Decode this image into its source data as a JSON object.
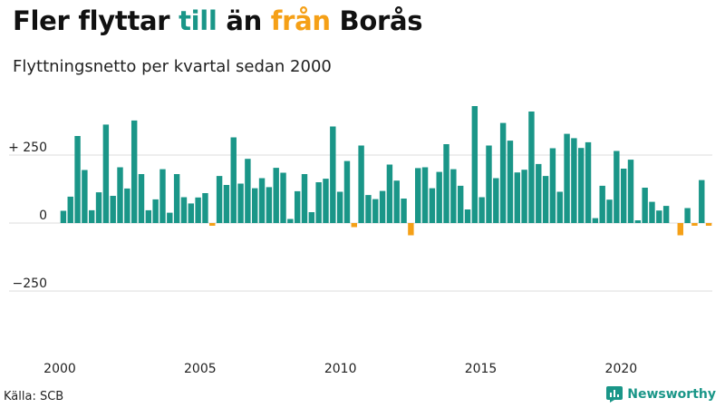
{
  "header": {
    "title_part1": "Fler flyttar ",
    "title_pos": "till",
    "title_part2": " än ",
    "title_neg": "från",
    "title_part3": " Borås",
    "subtitle": "Flyttningsnetto per kvartal sedan 2000"
  },
  "footer": {
    "source": "Källa: SCB",
    "brand": "Newsworthy"
  },
  "colors": {
    "positive": "#1a9688",
    "negative": "#f5a017",
    "grid": "#dddddd",
    "axis": "#555555"
  },
  "chart_data": {
    "type": "bar",
    "x_start": "2000 Q1",
    "x_ticks": [
      2000,
      2005,
      2010,
      2015,
      2020
    ],
    "x_tick_labels": [
      "2000",
      "2005",
      "2010",
      "2015",
      "2020"
    ],
    "y_ticks": [
      250,
      0,
      -250
    ],
    "y_tick_labels": [
      "+ 250",
      "0",
      "−250"
    ],
    "ylim": [
      -450,
      430
    ],
    "grid": true,
    "values": [
      45,
      97,
      320,
      195,
      47,
      113,
      362,
      100,
      205,
      127,
      377,
      180,
      47,
      87,
      198,
      38,
      180,
      95,
      72,
      94,
      110,
      -10,
      173,
      140,
      315,
      145,
      236,
      128,
      165,
      132,
      203,
      185,
      15,
      117,
      180,
      40,
      150,
      163,
      355,
      115,
      228,
      -15,
      285,
      103,
      88,
      118,
      215,
      156,
      90,
      -45,
      202,
      205,
      128,
      188,
      290,
      198,
      137,
      50,
      430,
      95,
      285,
      165,
      368,
      303,
      186,
      196,
      410,
      217,
      173,
      275,
      115,
      328,
      312,
      276,
      297,
      18,
      137,
      86,
      265,
      200,
      233,
      10,
      130,
      78,
      46,
      63,
      0,
      -45,
      55,
      -10,
      158,
      -10
    ]
  }
}
